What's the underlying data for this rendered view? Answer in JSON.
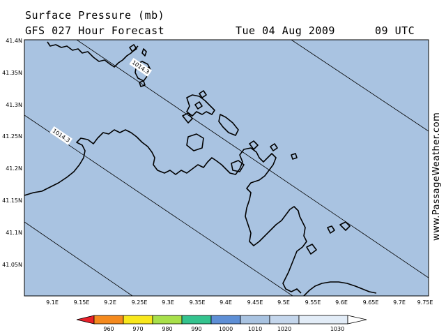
{
  "header": {
    "title": "Surface Pressure (mb)",
    "subtitle": "GFS 027 Hour Forecast",
    "date": "Tue 04 Aug 2009",
    "time": "09 UTC"
  },
  "map": {
    "ocean_color": "#a9c3e1",
    "land_outline_color": "#000000",
    "lat_ticks": [
      "41.4N",
      "41.35N",
      "41.3N",
      "41.25N",
      "41.2N",
      "41.15N",
      "41.1N",
      "41.05N"
    ],
    "lon_ticks": [
      "9.1E",
      "9.15E",
      "9.2E",
      "9.25E",
      "9.3E",
      "9.35E",
      "9.4E",
      "9.45E",
      "9.5E",
      "9.55E",
      "9.6E",
      "9.65E",
      "9.7E",
      "9.75E"
    ],
    "isobar_labels": [
      "1014.3",
      "1014.3"
    ]
  },
  "legend": {
    "ticks": [
      "960",
      "970",
      "980",
      "990",
      "1000",
      "1010",
      "1020",
      "1030"
    ],
    "colors": [
      "#e8202a",
      "#f58a1e",
      "#f8e71c",
      "#a8e04a",
      "#34c38e",
      "#5e8fd6",
      "#a9c3e1",
      "#e2ecf7",
      "#ffffff"
    ]
  },
  "watermark": "www.PassageWeather.com"
}
